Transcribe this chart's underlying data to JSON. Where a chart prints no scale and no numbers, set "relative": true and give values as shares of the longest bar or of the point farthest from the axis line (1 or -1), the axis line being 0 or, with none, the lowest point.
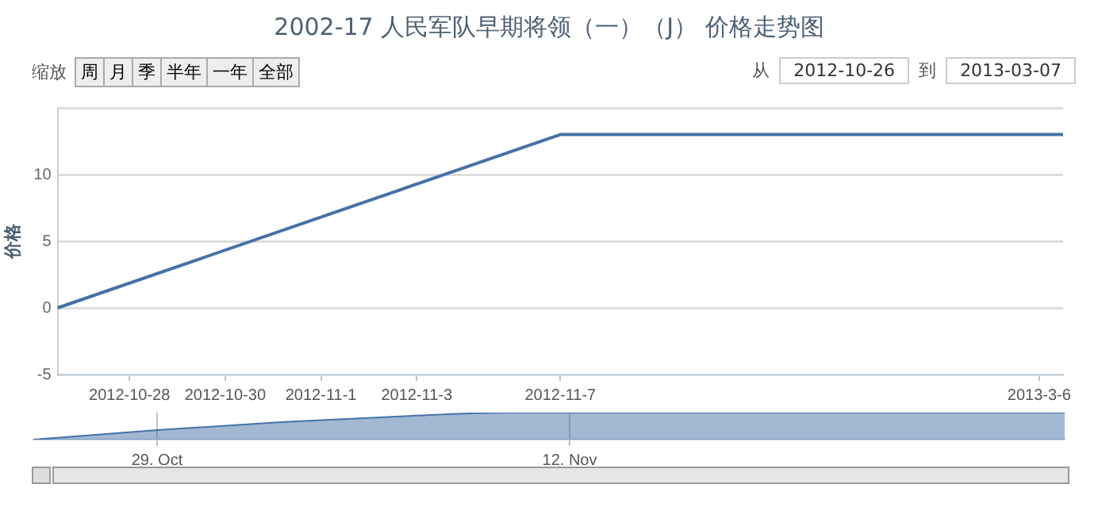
{
  "chart_data": [
    {
      "type": "line",
      "title": "2002-17 人民军队早期将领（一）（J）  价格走势图",
      "ylabel": "价格",
      "annotations": [
        "缩放",
        "周",
        "月",
        "季",
        "半年",
        "一年",
        "全部",
        "从",
        "2012-10-26",
        "到",
        "2013-03-07"
      ],
      "categories": [
        null,
        null,
        null,
        "2012-10-28",
        null,
        null,
        null,
        "2012-10-30",
        null,
        null,
        null,
        "2012-11-1",
        null,
        null,
        null,
        "2012-11-3",
        null,
        null,
        null,
        null,
        null,
        "2012-11-7",
        null,
        null,
        null,
        null,
        null,
        null,
        null,
        null,
        null,
        null,
        null,
        null,
        null,
        null,
        null,
        null,
        null,
        null,
        null,
        "2013-3-6",
        null
      ],
      "series": [
        {
          "color": "#4572a7",
          "values": [
            0,
            null,
            null,
            null,
            null,
            null,
            null,
            null,
            null,
            null,
            null,
            null,
            null,
            null,
            null,
            null,
            null,
            null,
            null,
            null,
            null,
            13,
            null,
            null,
            null,
            null,
            null,
            null,
            null,
            null,
            null,
            null,
            null,
            null,
            null,
            null,
            null,
            null,
            null,
            null,
            null,
            null,
            13
          ]
        }
      ],
      "ylim": [
        -5,
        15
      ],
      "yticks": [
        -5,
        0,
        5,
        10,
        {
          "value": 15,
          "label": null
        }
      ],
      "grid": "y",
      "marker": "none"
    },
    {
      "type": "area",
      "relative": true,
      "tick_labels": "x",
      "categories": [
        null,
        null,
        null,
        null,
        null,
        null,
        "29. Oct",
        null,
        null,
        null,
        null,
        null,
        null,
        null,
        null,
        null,
        null,
        null,
        null,
        null,
        null,
        null,
        null,
        null,
        null,
        null,
        "12. Nov",
        null,
        null,
        null,
        null,
        null,
        null,
        null,
        null,
        null,
        null,
        null,
        null,
        null,
        null,
        null,
        null,
        null,
        null,
        null,
        null,
        null,
        null,
        null,
        null
      ],
      "series": [
        {
          "color": "#4572a7",
          "values": [
            0,
            null,
            null,
            null,
            null,
            null,
            0.35,
            null,
            null,
            null,
            null,
            null,
            0.65,
            null,
            null,
            null,
            null,
            null,
            0.87,
            null,
            null,
            null,
            null,
            1,
            null,
            null,
            null,
            null,
            null,
            null,
            null,
            null,
            null,
            null,
            null,
            null,
            null,
            null,
            null,
            null,
            null,
            null,
            null,
            null,
            null,
            null,
            null,
            null,
            null,
            null,
            1
          ]
        }
      ],
      "grid": "x",
      "marker": "none"
    }
  ]
}
